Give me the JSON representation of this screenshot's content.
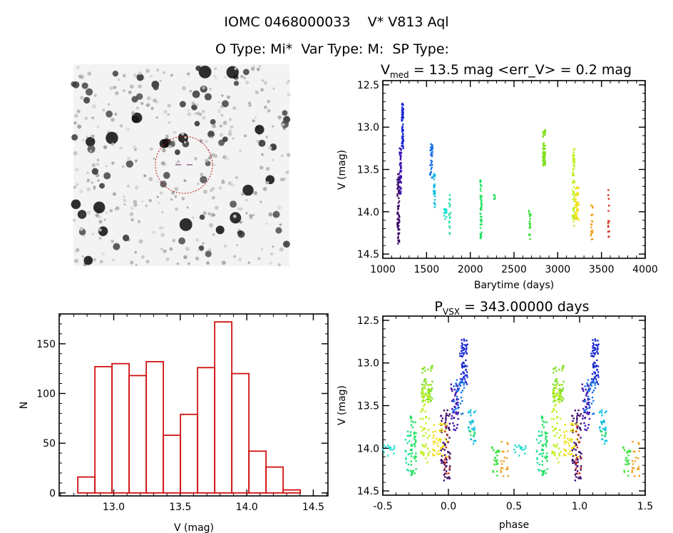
{
  "header": {
    "line1": "IOMC 0468000033    V* V813 Aql",
    "line2": "O Type: Mi*  Var Type: M:  SP Type:"
  },
  "colors": {
    "histogram": "#d01010",
    "circle": "#c01010",
    "axis": "#000000"
  },
  "chart_data": [
    {
      "type": "image",
      "name": "finding-chart",
      "description_marks": "star field with dotted circle around target"
    },
    {
      "type": "scatter",
      "name": "light-curve",
      "title_main": "V",
      "title_sub": "med",
      "title_rest": " = 13.5 mag <err_V> = 0.2 mag",
      "xlabel": "Barytime (days)",
      "ylabel": "V (mag)",
      "xlim": [
        1000,
        4000
      ],
      "ylim": [
        14.55,
        12.45
      ],
      "xticks": [
        "1000",
        "1500",
        "2000",
        "2500",
        "3000",
        "3500",
        "4000"
      ],
      "yticks": [
        "12.5",
        "13.0",
        "13.5",
        "14.0",
        "14.5"
      ],
      "clusters": [
        {
          "t": [
            1165,
            1190
          ],
          "mag": [
            13.55,
            14.4
          ],
          "n": 70,
          "color": "#3a0868"
        },
        {
          "t": [
            1192,
            1212
          ],
          "mag": [
            13.25,
            13.8
          ],
          "n": 45,
          "color": "#3c10b0"
        },
        {
          "t": [
            1215,
            1235
          ],
          "mag": [
            12.72,
            13.25
          ],
          "n": 70,
          "color": "#1a2ad0"
        },
        {
          "t": [
            1540,
            1570
          ],
          "mag": [
            13.2,
            13.62
          ],
          "n": 35,
          "color": "#1a70e0"
        },
        {
          "t": [
            1580,
            1600
          ],
          "mag": [
            13.55,
            13.95
          ],
          "n": 30,
          "color": "#10c0e0"
        },
        {
          "t": [
            1700,
            1730
          ],
          "mag": [
            13.95,
            14.1
          ],
          "n": 15,
          "color": "#20e0d0"
        },
        {
          "t": [
            1755,
            1775
          ],
          "mag": [
            13.78,
            14.3
          ],
          "n": 18,
          "color": "#20e0a0"
        },
        {
          "t": [
            2115,
            2130
          ],
          "mag": [
            13.62,
            14.33
          ],
          "n": 50,
          "color": "#20e060"
        },
        {
          "t": [
            2270,
            2285
          ],
          "mag": [
            13.8,
            13.86
          ],
          "n": 6,
          "color": "#30e060"
        },
        {
          "t": [
            2670,
            2690
          ],
          "mag": [
            13.97,
            14.33
          ],
          "n": 25,
          "color": "#40e040"
        },
        {
          "t": [
            2830,
            2860
          ],
          "mag": [
            13.02,
            13.48
          ],
          "n": 60,
          "color": "#80e020"
        },
        {
          "t": [
            3170,
            3195
          ],
          "mag": [
            13.25,
            14.17
          ],
          "n": 60,
          "color": "#c0f020"
        },
        {
          "t": [
            3200,
            3240
          ],
          "mag": [
            13.7,
            14.1
          ],
          "n": 45,
          "color": "#f0e010"
        },
        {
          "t": [
            3380,
            3400
          ],
          "mag": [
            13.9,
            14.38
          ],
          "n": 20,
          "color": "#f0a020"
        },
        {
          "t": [
            3575,
            3590
          ],
          "mag": [
            13.68,
            14.3
          ],
          "n": 14,
          "color": "#d03020"
        }
      ]
    },
    {
      "type": "bar",
      "name": "histogram",
      "xlabel": "V (mag)",
      "ylabel": "N",
      "xlim": [
        12.59,
        14.61
      ],
      "ylim": [
        -3,
        180
      ],
      "xticks": [
        "13.0",
        "13.5",
        "14.0",
        "14.5"
      ],
      "yticks": [
        "0",
        "50",
        "100",
        "150"
      ],
      "bin_start": 12.73,
      "bin_width": 0.1286,
      "values": [
        16,
        127,
        130,
        118,
        132,
        58,
        79,
        126,
        172,
        120,
        42,
        26,
        3
      ]
    },
    {
      "type": "scatter",
      "name": "phased-light-curve",
      "title_main": "P",
      "title_sub": "VSX",
      "title_rest": " = 343.00000 days",
      "period": 343.0,
      "xlabel": "phase",
      "ylabel": "V (mag)",
      "xlim": [
        -0.5,
        1.5
      ],
      "ylim": [
        14.55,
        12.45
      ],
      "xticks": [
        "-0.5",
        "0.0",
        "0.5",
        "1.0",
        "1.5"
      ],
      "yticks": [
        "12.5",
        "13.0",
        "13.5",
        "14.0",
        "14.5"
      ]
    }
  ]
}
